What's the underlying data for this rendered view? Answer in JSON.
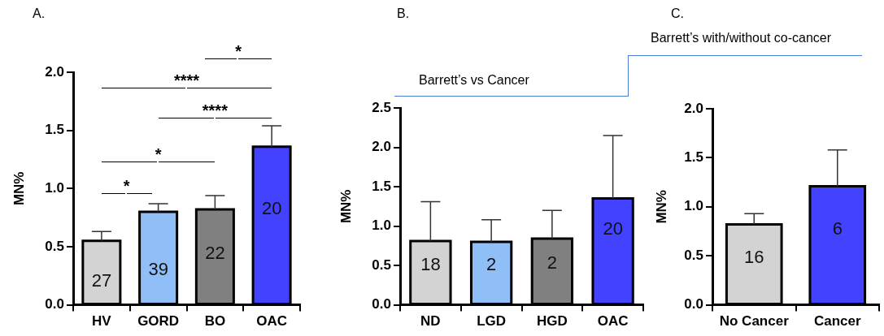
{
  "chart_data": [
    {
      "type": "bar",
      "title": "A.",
      "ylabel": "MN%",
      "categories": [
        "HV",
        "GORD",
        "BO",
        "OAC"
      ],
      "values": [
        0.55,
        0.8,
        0.82,
        1.36
      ],
      "colors": [
        "#d3d3d3",
        "#90bef7",
        "#808080",
        "#4343ff"
      ],
      "errors": [
        [
          0.55,
          0.63
        ],
        [
          0.8,
          0.87
        ],
        [
          0.82,
          0.94
        ],
        [
          1.36,
          1.54
        ]
      ],
      "ylim": [
        0,
        2
      ],
      "yticks": [
        {
          "value": 0,
          "label": "0.0"
        },
        0.5,
        {
          "value": 1,
          "label": "1.0"
        },
        1.5,
        {
          "value": 2,
          "label": "2.0"
        }
      ],
      "annotations": [
        "27",
        "39",
        "22",
        "20",
        "*",
        "*",
        "****",
        "****",
        "*"
      ]
    },
    {
      "type": "bar",
      "title": "B.",
      "ylabel": "MN%",
      "categories": [
        "ND",
        "LGD",
        "HGD",
        "OAC"
      ],
      "values": [
        0.81,
        0.8,
        0.84,
        1.35
      ],
      "colors": [
        "#d3d3d3",
        "#90bef7",
        "#808080",
        "#4343ff"
      ],
      "errors": [
        [
          0.81,
          1.31
        ],
        [
          0.8,
          1.08
        ],
        [
          0.84,
          1.2
        ],
        [
          1.35,
          2.15
        ]
      ],
      "ylim": [
        0,
        2.5
      ],
      "yticks": [
        {
          "value": 0,
          "label": "0.0"
        },
        0.5,
        {
          "value": 1,
          "label": "1.0"
        },
        1.5,
        {
          "value": 2,
          "label": "2.0"
        },
        2.5
      ],
      "annotations": [
        "18",
        "2",
        "2",
        "20",
        "Barrett’s vs Cancer"
      ]
    },
    {
      "type": "bar",
      "title": "C.",
      "ylabel": "MN%",
      "categories": [
        "No Cancer",
        "Cancer"
      ],
      "values": [
        0.82,
        1.21
      ],
      "colors": [
        "#d3d3d3",
        "#4343ff"
      ],
      "errors": [
        [
          0.82,
          0.93
        ],
        [
          1.21,
          1.58
        ]
      ],
      "ylim": [
        0,
        2
      ],
      "yticks": [
        {
          "value": 0,
          "label": "0.0"
        },
        0.5,
        {
          "value": 1,
          "label": "1.0"
        },
        1.5,
        {
          "value": 2,
          "label": "2.0"
        }
      ],
      "annotations": [
        "16",
        "6",
        "Barrett’s with/without co-cancer"
      ]
    }
  ]
}
